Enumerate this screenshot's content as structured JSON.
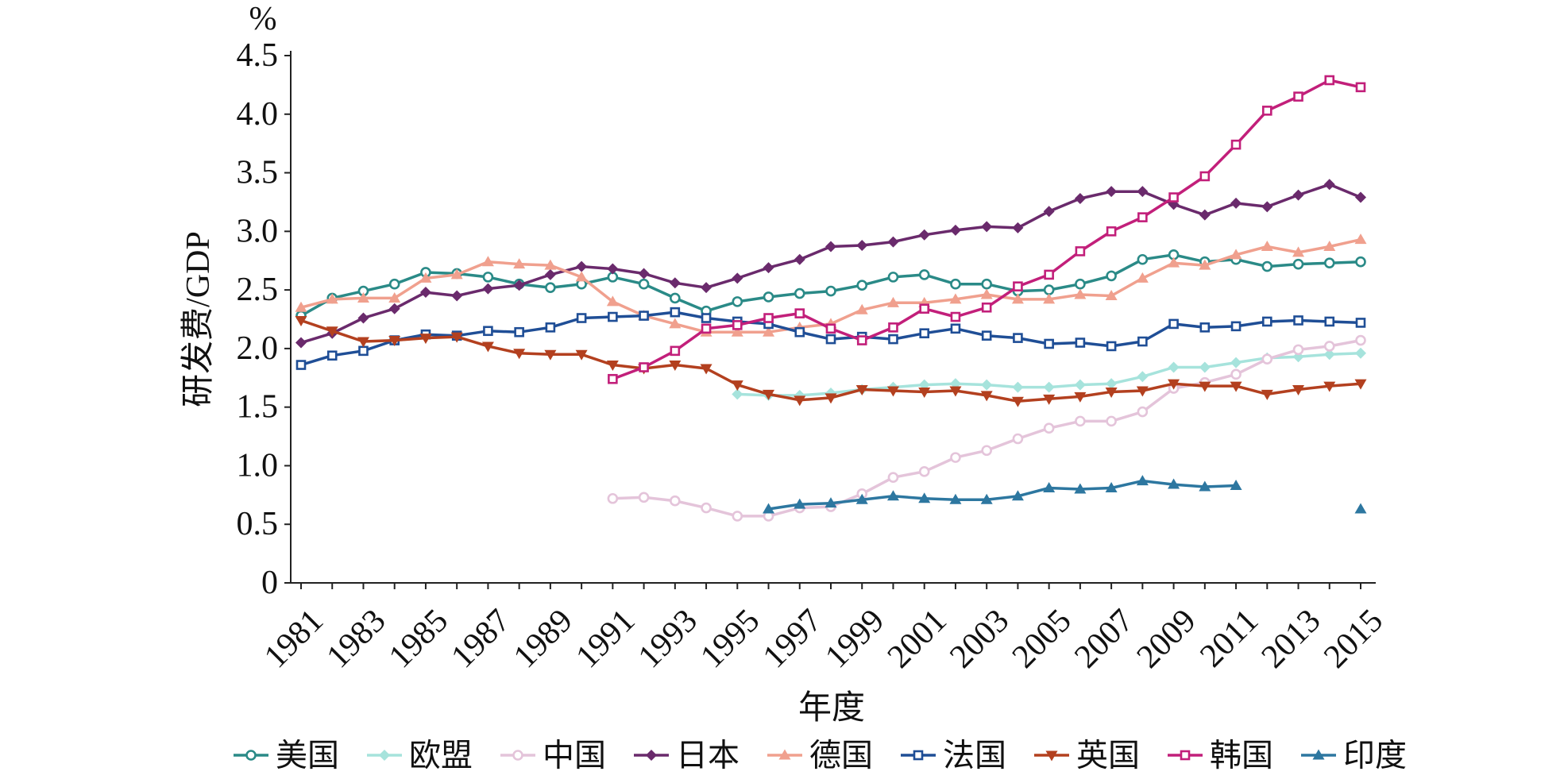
{
  "chart_data": {
    "type": "line",
    "unit": "%",
    "xlabel": "年度",
    "ylabel": "研发费/GDP",
    "x": [
      1981,
      1982,
      1983,
      1984,
      1985,
      1986,
      1987,
      1988,
      1989,
      1990,
      1991,
      1992,
      1993,
      1994,
      1995,
      1996,
      1997,
      1998,
      1999,
      2000,
      2001,
      2002,
      2003,
      2004,
      2005,
      2006,
      2007,
      2008,
      2009,
      2010,
      2011,
      2012,
      2013,
      2014,
      2015
    ],
    "xticks": [
      "1981",
      "1983",
      "1985",
      "1987",
      "1989",
      "1991",
      "1993",
      "1995",
      "1997",
      "1999",
      "2001",
      "2003",
      "2005",
      "2007",
      "2009",
      "2011",
      "2013",
      "2015"
    ],
    "yticks": [
      "0",
      "0.5",
      "1.0",
      "1.5",
      "2.0",
      "2.5",
      "3.0",
      "3.5",
      "4.0",
      "4.5"
    ],
    "xlim": [
      1981,
      2015
    ],
    "ylim": [
      0,
      4.5
    ],
    "grid": false,
    "legend": "bottom",
    "series": [
      {
        "name": "美国",
        "color": "#2a8a87",
        "marker": "circle-open",
        "values": [
          2.28,
          2.43,
          2.49,
          2.55,
          2.65,
          2.64,
          2.61,
          2.55,
          2.52,
          2.55,
          2.61,
          2.55,
          2.43,
          2.32,
          2.4,
          2.44,
          2.47,
          2.49,
          2.54,
          2.61,
          2.63,
          2.55,
          2.55,
          2.49,
          2.5,
          2.55,
          2.62,
          2.76,
          2.8,
          2.74,
          2.76,
          2.7,
          2.72,
          2.73,
          2.74
        ]
      },
      {
        "name": "欧盟",
        "color": "#a6e3dc",
        "marker": "diamond",
        "values": [
          null,
          null,
          null,
          null,
          null,
          null,
          null,
          null,
          null,
          null,
          null,
          null,
          null,
          null,
          1.61,
          1.6,
          1.6,
          1.62,
          1.65,
          1.67,
          1.69,
          1.7,
          1.69,
          1.67,
          1.67,
          1.69,
          1.7,
          1.76,
          1.84,
          1.84,
          1.88,
          1.92,
          1.93,
          1.95,
          1.96
        ]
      },
      {
        "name": "中国",
        "color": "#e4c4da",
        "marker": "circle-open",
        "values": [
          null,
          null,
          null,
          null,
          null,
          null,
          null,
          null,
          null,
          null,
          0.72,
          0.73,
          0.7,
          0.64,
          0.57,
          0.57,
          0.64,
          0.65,
          0.76,
          0.9,
          0.95,
          1.07,
          1.13,
          1.23,
          1.32,
          1.38,
          1.38,
          1.46,
          1.66,
          1.71,
          1.78,
          1.91,
          1.99,
          2.02,
          2.07
        ]
      },
      {
        "name": "日本",
        "color": "#6a2a6c",
        "marker": "diamond",
        "values": [
          2.05,
          2.13,
          2.26,
          2.34,
          2.48,
          2.45,
          2.51,
          2.54,
          2.63,
          2.7,
          2.68,
          2.64,
          2.56,
          2.52,
          2.6,
          2.69,
          2.76,
          2.87,
          2.88,
          2.91,
          2.97,
          3.01,
          3.04,
          3.03,
          3.17,
          3.28,
          3.34,
          3.34,
          3.23,
          3.14,
          3.24,
          3.21,
          3.31,
          3.4,
          3.29
        ]
      },
      {
        "name": "德国",
        "color": "#f0a08e",
        "marker": "triangle-up",
        "values": [
          2.35,
          2.42,
          2.43,
          2.43,
          2.6,
          2.63,
          2.74,
          2.72,
          2.71,
          2.61,
          2.4,
          2.28,
          2.21,
          2.14,
          2.14,
          2.14,
          2.18,
          2.21,
          2.33,
          2.39,
          2.39,
          2.42,
          2.46,
          2.42,
          2.42,
          2.46,
          2.45,
          2.6,
          2.73,
          2.71,
          2.8,
          2.87,
          2.82,
          2.87,
          2.93
        ]
      },
      {
        "name": "法国",
        "color": "#1f4e96",
        "marker": "square-open",
        "values": [
          1.86,
          1.94,
          1.98,
          2.07,
          2.12,
          2.11,
          2.15,
          2.14,
          2.18,
          2.26,
          2.27,
          2.28,
          2.31,
          2.26,
          2.23,
          2.21,
          2.14,
          2.08,
          2.1,
          2.08,
          2.13,
          2.17,
          2.11,
          2.09,
          2.04,
          2.05,
          2.02,
          2.06,
          2.21,
          2.18,
          2.19,
          2.23,
          2.24,
          2.23,
          2.22
        ]
      },
      {
        "name": "英国",
        "color": "#b3401f",
        "marker": "triangle-down",
        "values": [
          2.24,
          2.15,
          2.06,
          2.07,
          2.09,
          2.1,
          2.02,
          1.96,
          1.95,
          1.95,
          1.86,
          1.83,
          1.86,
          1.83,
          1.69,
          1.61,
          1.56,
          1.58,
          1.65,
          1.64,
          1.63,
          1.64,
          1.6,
          1.55,
          1.57,
          1.59,
          1.63,
          1.64,
          1.7,
          1.68,
          1.68,
          1.61,
          1.65,
          1.68,
          1.7
        ]
      },
      {
        "name": "韩国",
        "color": "#c21f7a",
        "marker": "square-open",
        "values": [
          null,
          null,
          null,
          null,
          null,
          null,
          null,
          null,
          null,
          null,
          1.74,
          1.84,
          1.98,
          2.17,
          2.2,
          2.26,
          2.3,
          2.17,
          2.07,
          2.18,
          2.34,
          2.27,
          2.35,
          2.53,
          2.63,
          2.83,
          3.0,
          3.12,
          3.29,
          3.47,
          3.74,
          4.03,
          4.15,
          4.29,
          4.23
        ]
      },
      {
        "name": "印度",
        "color": "#2d77a0",
        "marker": "triangle-up",
        "values": [
          null,
          null,
          null,
          null,
          null,
          null,
          null,
          null,
          null,
          null,
          null,
          null,
          null,
          null,
          null,
          0.63,
          0.67,
          0.68,
          0.71,
          0.74,
          0.72,
          0.71,
          0.71,
          0.74,
          0.81,
          0.8,
          0.81,
          0.87,
          0.84,
          0.82,
          0.83,
          null,
          null,
          null,
          0.63
        ]
      }
    ]
  }
}
